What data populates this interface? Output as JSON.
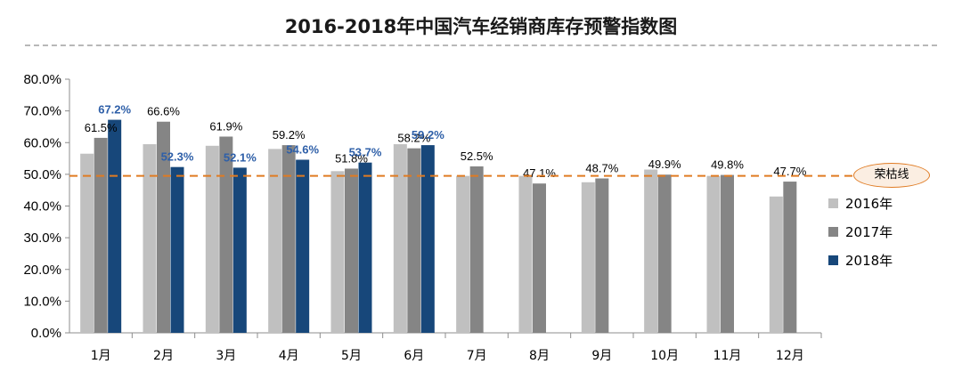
{
  "title": "2016-2018年中国汽车经销商库存预警指数图",
  "reference_line": {
    "label": "荣枯线",
    "value": 49.5,
    "color": "#e07b22"
  },
  "chart_data": {
    "type": "bar",
    "categories": [
      "1月",
      "2月",
      "3月",
      "4月",
      "5月",
      "6月",
      "7月",
      "8月",
      "9月",
      "10月",
      "11月",
      "12月"
    ],
    "ylim": [
      0,
      80
    ],
    "yticks": [
      "0.0%",
      "10.0%",
      "20.0%",
      "30.0%",
      "40.0%",
      "50.0%",
      "60.0%",
      "70.0%",
      "80.0%"
    ],
    "grid": false,
    "legend_position": "right",
    "series": [
      {
        "name": "2016年",
        "color": "#c0c0c0",
        "values": [
          56.5,
          59.5,
          59.0,
          58.0,
          51.0,
          59.5,
          49.5,
          49.5,
          47.5,
          51.5,
          49.5,
          43.0
        ],
        "labels": [
          "",
          "",
          "",
          "",
          "",
          "",
          "",
          "",
          "",
          "",
          "",
          ""
        ]
      },
      {
        "name": "2017年",
        "color": "#858585",
        "values": [
          61.5,
          66.6,
          61.9,
          59.2,
          51.8,
          58.2,
          52.5,
          47.1,
          48.7,
          49.9,
          49.8,
          47.7
        ],
        "labels": [
          "61.5%",
          "66.6%",
          "61.9%",
          "59.2%",
          "51.8%",
          "58.2%",
          "52.5%",
          "47.1%",
          "48.7%",
          "49.9%",
          "49.8%",
          "47.7%"
        ]
      },
      {
        "name": "2018年",
        "color": "#17477a",
        "values": [
          67.2,
          52.3,
          52.1,
          54.6,
          53.7,
          59.2,
          null,
          null,
          null,
          null,
          null,
          null
        ],
        "labels": [
          "67.2%",
          "52.3%",
          "52.1%",
          "54.6%",
          "53.7%",
          "59.2%",
          "",
          "",
          "",
          "",
          "",
          ""
        ]
      }
    ]
  }
}
